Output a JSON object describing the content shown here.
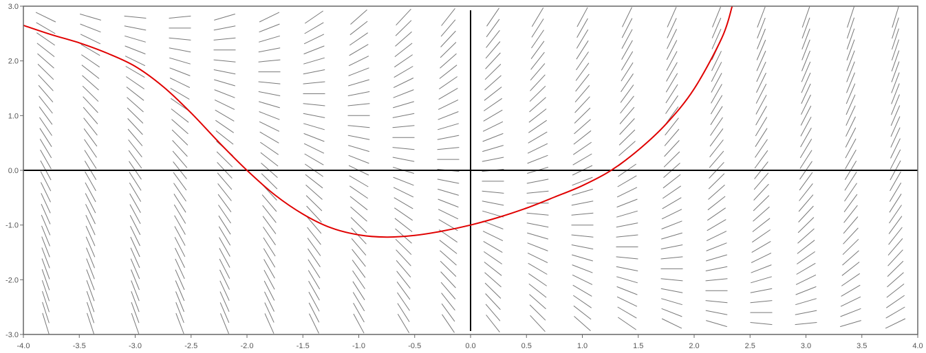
{
  "chart_data": {
    "type": "line",
    "title": "",
    "xlabel": "",
    "ylabel": "",
    "xlim": [
      -4.0,
      4.0
    ],
    "ylim": [
      -3.0,
      3.0
    ],
    "grid": false,
    "x_ticks": [
      "-4.0",
      "-3.5",
      "-3.0",
      "-2.5",
      "-2.0",
      "-1.5",
      "-1.0",
      "-0.5",
      "0.0",
      "0.5",
      "1.0",
      "1.5",
      "2.0",
      "2.5",
      "3.0",
      "3.5",
      "4.0"
    ],
    "y_ticks": [
      "3.0",
      "2.0",
      "1.0",
      "0.0",
      "-1.0",
      "-2.0",
      "-3.0"
    ],
    "slope_field": {
      "description": "dy/dx = x + y",
      "x_start": -3.8,
      "x_step": 0.4,
      "x_count": 20,
      "y_start": -2.8,
      "y_step": 0.2,
      "y_count": 29,
      "color": "#777777"
    },
    "series": [
      {
        "color": "#e00000",
        "x": [
          -4.0,
          -3.75,
          -3.5,
          -3.25,
          -3.0,
          -2.75,
          -2.5,
          -2.25,
          -2.0,
          -1.75,
          -1.5,
          -1.25,
          -1.0,
          -0.75,
          -0.5,
          -0.25,
          0.0,
          0.25,
          0.5,
          0.75,
          1.0,
          1.25,
          1.5,
          1.75,
          2.0,
          2.25,
          2.34
        ],
        "y": [
          2.65,
          2.48,
          2.33,
          2.14,
          1.9,
          1.53,
          1.05,
          0.51,
          0.0,
          -0.45,
          -0.8,
          -1.05,
          -1.18,
          -1.22,
          -1.19,
          -1.11,
          -1.0,
          -0.86,
          -0.69,
          -0.49,
          -0.28,
          -0.01,
          0.37,
          0.85,
          1.49,
          2.43,
          3.0
        ]
      }
    ],
    "axes_lines": {
      "x_axis_at_y": 0.0,
      "y_axis_at_x": 0.0,
      "color": "#000000"
    }
  }
}
